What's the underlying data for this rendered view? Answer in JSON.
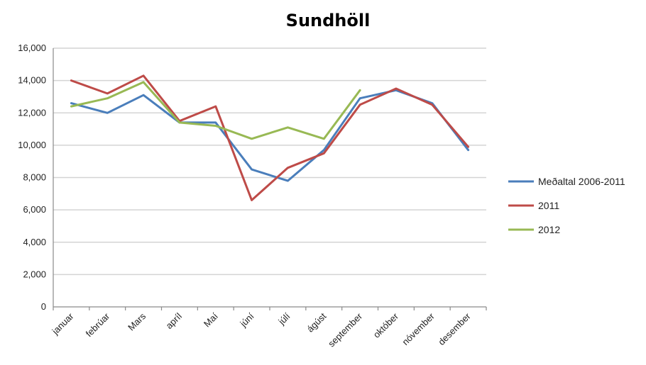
{
  "chart_data": {
    "type": "line",
    "title": "Sundhöll",
    "xlabel": "",
    "ylabel": "",
    "ylim": [
      0,
      16000
    ],
    "yticks": [
      "0",
      "2,000",
      "4,000",
      "6,000",
      "8,000",
      "10,000",
      "12,000",
      "14,000",
      "16,000"
    ],
    "ytick_values": [
      0,
      2000,
      4000,
      6000,
      8000,
      10000,
      12000,
      14000,
      16000
    ],
    "grid": true,
    "legend_position": "right",
    "categories": [
      "januar",
      "febrúar",
      "Mars",
      "apríl",
      "Maí",
      "júní",
      "júlí",
      "ágúst",
      "september",
      "október",
      "nóvember",
      "desember"
    ],
    "series": [
      {
        "name": "Meðaltal 2006-2011",
        "color": "#4a7ebb",
        "values": [
          12600,
          12000,
          13100,
          11400,
          11400,
          8500,
          7800,
          9700,
          12900,
          13400,
          12600,
          9700
        ]
      },
      {
        "name": "2011",
        "color": "#be4b48",
        "values": [
          14000,
          13200,
          14300,
          11500,
          12400,
          6600,
          8600,
          9500,
          12500,
          13500,
          12500,
          9900
        ]
      },
      {
        "name": "2012",
        "color": "#98b954",
        "values": [
          12400,
          12900,
          13900,
          11400,
          11200,
          10400,
          11100,
          10400,
          13400,
          null,
          null,
          null
        ]
      }
    ]
  }
}
